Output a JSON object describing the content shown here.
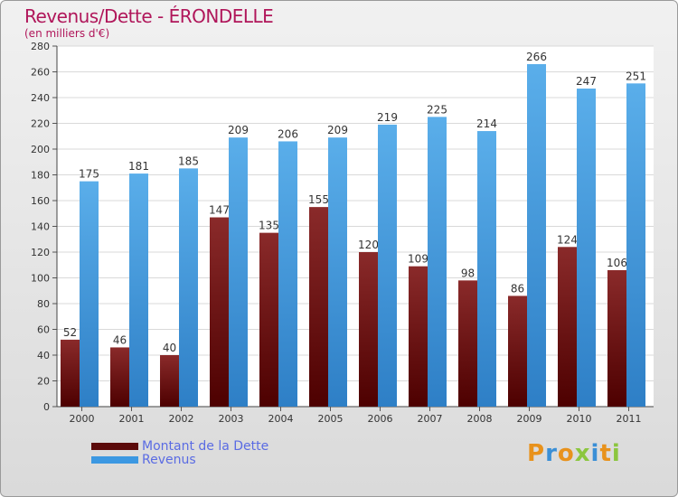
{
  "header": {
    "title": "Revenus/Dette - ÉRONDELLE",
    "subtitle": "(en milliers d'€)"
  },
  "chart_data": {
    "type": "bar",
    "categories": [
      "2000",
      "2001",
      "2002",
      "2003",
      "2004",
      "2005",
      "2006",
      "2007",
      "2008",
      "2009",
      "2010",
      "2011"
    ],
    "series": [
      {
        "name": "Montant de la Dette",
        "values": [
          52,
          46,
          40,
          147,
          135,
          155,
          120,
          109,
          98,
          86,
          124,
          106
        ],
        "color": "#7a1f1f"
      },
      {
        "name": "Revenus",
        "values": [
          175,
          181,
          185,
          209,
          206,
          209,
          219,
          225,
          214,
          266,
          247,
          251
        ],
        "color": "#4ba3e6"
      }
    ],
    "ylim": [
      0,
      280
    ],
    "yticks": [
      0,
      20,
      40,
      60,
      80,
      100,
      120,
      140,
      160,
      180,
      200,
      220,
      240,
      260,
      280
    ],
    "grid": true,
    "legend": "bottom-left"
  },
  "legend": {
    "items": [
      {
        "label": "Montant de la Dette",
        "color": "#6b0d0d"
      },
      {
        "label": "Revenus",
        "color": "#3c98e2"
      }
    ]
  },
  "logo": {
    "letters": [
      "P",
      "r",
      "o",
      "x",
      "i",
      "t",
      "i"
    ],
    "colors": [
      "#e8921c",
      "#3a8fd6",
      "#e8921c",
      "#8cc63f",
      "#3a8fd6",
      "#e8921c",
      "#8cc63f"
    ]
  }
}
